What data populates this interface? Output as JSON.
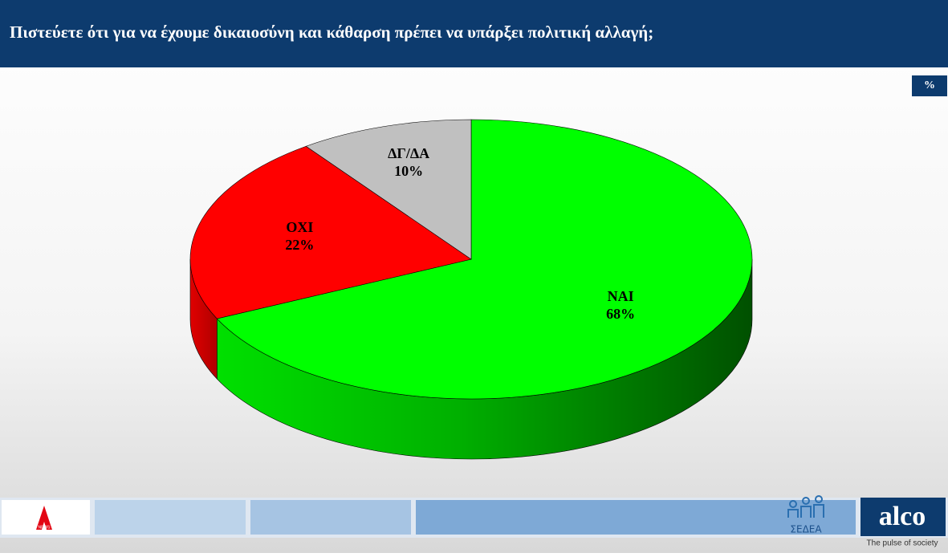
{
  "chart_data": {
    "type": "pie",
    "title": "Πιστεύετε ότι για να έχουμε δικαιοσύνη και κάθαρση πρέπει να υπάρξει πολιτική αλλαγή;",
    "categories": [
      "ΝΑΙ",
      "ΟΧΙ",
      "ΔΓ/ΔΑ"
    ],
    "values": [
      68,
      22,
      10
    ],
    "value_labels": [
      "68%",
      "22%",
      "10%"
    ],
    "colors": [
      "#00ff00",
      "#ff0000",
      "#c0c0c0"
    ]
  },
  "unit_badge": "%",
  "logos": {
    "alpha": "NEWS",
    "sedea": "ΣΕΔΕΑ",
    "alco": "alco",
    "alco_tagline": "The pulse of society"
  }
}
